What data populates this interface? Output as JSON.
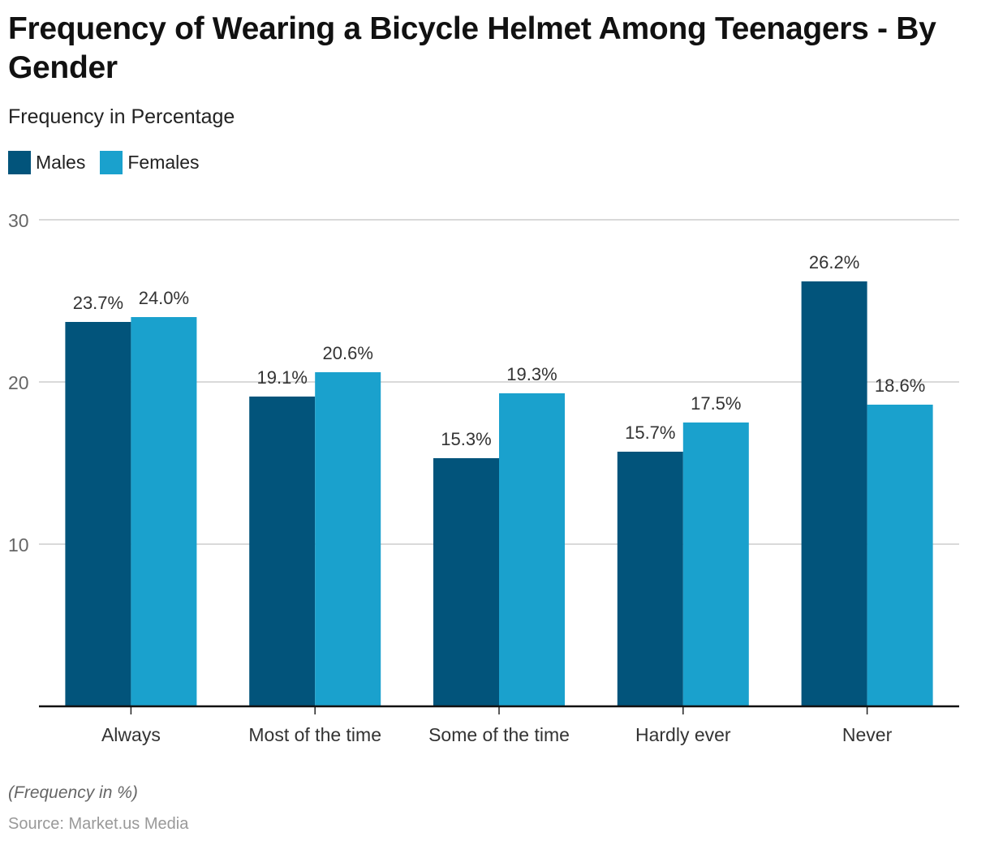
{
  "chart_data": {
    "type": "bar",
    "title": "Frequency of Wearing a Bicycle Helmet Among Teenagers - By Gender",
    "subtitle": "Frequency in Percentage",
    "xlabel": "",
    "ylabel": "",
    "categories": [
      "Always",
      "Most of the time",
      "Some of the time",
      "Hardly ever",
      "Never"
    ],
    "series": [
      {
        "name": "Males",
        "color": "#02547b",
        "values": [
          23.7,
          19.1,
          15.3,
          15.7,
          26.2
        ],
        "labels": [
          "23.7%",
          "19.1%",
          "15.3%",
          "15.7%",
          "26.2%"
        ]
      },
      {
        "name": "Females",
        "color": "#1aa1cd",
        "values": [
          24.0,
          20.6,
          19.3,
          17.5,
          18.6
        ],
        "labels": [
          "24.0%",
          "20.6%",
          "19.3%",
          "17.5%",
          "18.6%"
        ]
      }
    ],
    "ylim": [
      0,
      30
    ],
    "yticks": [
      10,
      20,
      30
    ],
    "ytick_labels": [
      "10",
      "20",
      "30"
    ],
    "grid": true,
    "legend_position": "top-left",
    "note": "(Frequency in %)",
    "source": "Source: Market.us Media"
  }
}
